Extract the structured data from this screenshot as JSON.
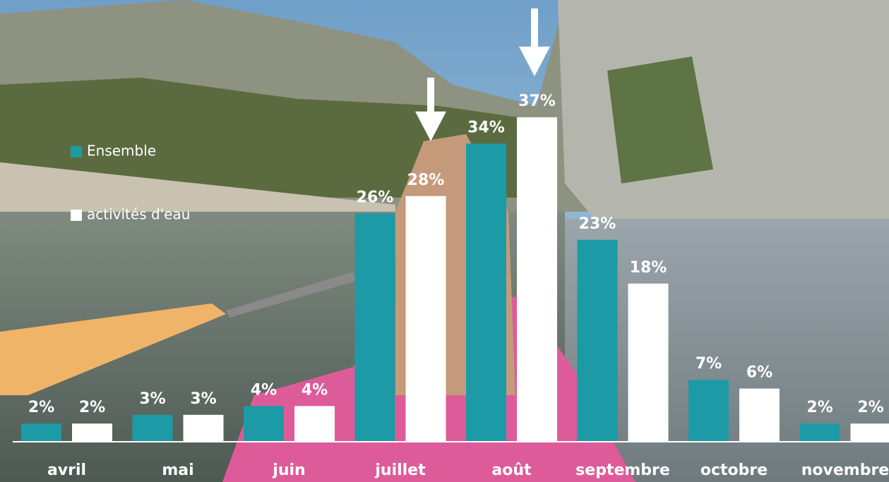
{
  "chart_data": {
    "type": "bar",
    "categories": [
      "avril",
      "mai",
      "juin",
      "juillet",
      "août",
      "septembre",
      "octobre",
      "novembre"
    ],
    "series": [
      {
        "name": "Ensemble",
        "color": "#1c9ba6",
        "values": [
          2,
          3,
          4,
          26,
          34,
          23,
          7,
          2
        ],
        "value_labels": [
          "2%",
          "3%",
          "4%",
          "26%",
          "34%",
          "23%",
          "7%",
          "2%"
        ]
      },
      {
        "name": "activités d'eau",
        "color": "#ffffff",
        "values": [
          2,
          3,
          4,
          28,
          37,
          18,
          6,
          2
        ],
        "value_labels": [
          "2%",
          "3%",
          "4%",
          "28%",
          "37%",
          "18%",
          "6%",
          "2%"
        ]
      }
    ]
  }
}
